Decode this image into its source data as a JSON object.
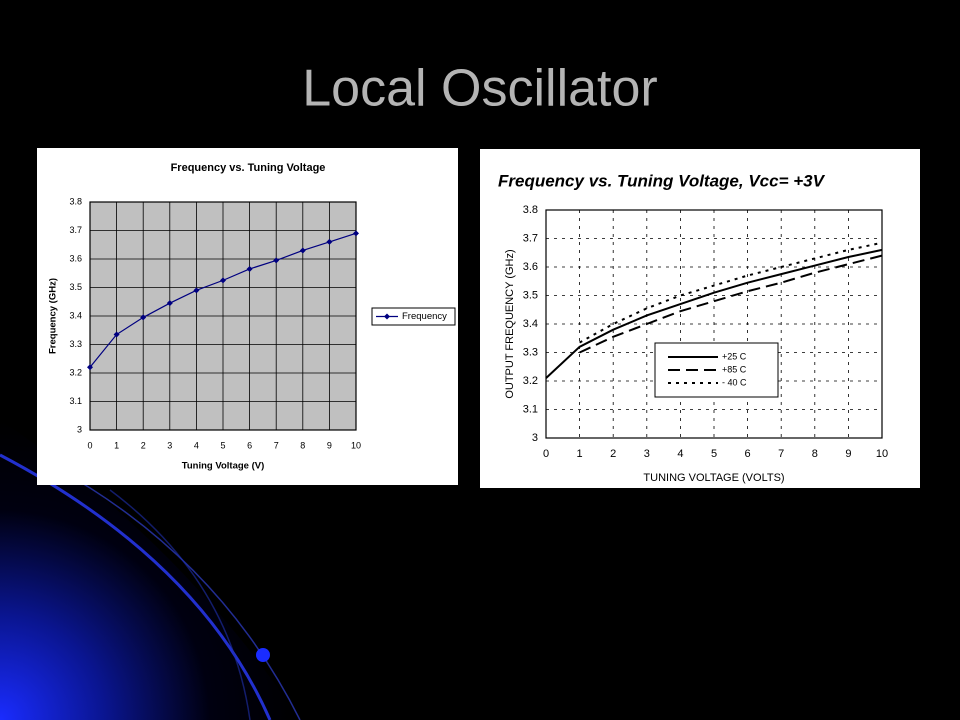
{
  "title": "Local Oscillator",
  "chart_data": [
    {
      "type": "line",
      "title": "Frequency vs. Tuning Voltage",
      "x_label": "Tuning Voltage (V)",
      "y_label": "Frequency (GHz)",
      "x": [
        0,
        1,
        2,
        3,
        4,
        5,
        6,
        7,
        8,
        9,
        10
      ],
      "xlim": [
        0,
        10
      ],
      "xticks": [
        0,
        1,
        2,
        3,
        4,
        5,
        6,
        7,
        8,
        9,
        10
      ],
      "ylim": [
        3,
        3.8
      ],
      "yticks": [
        3,
        3.1,
        3.2,
        3.3,
        3.4,
        3.5,
        3.6,
        3.7,
        3.8
      ],
      "grid": true,
      "grid_style": "solid",
      "legend": "right",
      "markers": true,
      "plot_background": "#c0c0c0",
      "series": [
        {
          "name": "Frequency",
          "color": "#000080",
          "dash": "solid",
          "values": [
            3.22,
            3.335,
            3.395,
            3.445,
            3.49,
            3.525,
            3.565,
            3.595,
            3.63,
            3.66,
            3.69
          ]
        }
      ]
    },
    {
      "type": "line",
      "title": "Frequency vs. Tuning Voltage, Vcc= +3V",
      "x_label": "TUNING VOLTAGE (VOLTS)",
      "y_label": "OUTPUT  FREQUENCY (GHz)",
      "x": [
        0,
        1,
        2,
        3,
        4,
        5,
        6,
        7,
        8,
        9,
        10
      ],
      "xlim": [
        0,
        10
      ],
      "xticks": [
        0,
        1,
        2,
        3,
        4,
        5,
        6,
        7,
        8,
        9,
        10
      ],
      "ylim": [
        3,
        3.8
      ],
      "yticks": [
        3,
        3.1,
        3.2,
        3.3,
        3.4,
        3.5,
        3.6,
        3.7,
        3.8
      ],
      "grid": true,
      "grid_style": "dotted",
      "legend": "inside",
      "markers": false,
      "plot_background": "#ffffff",
      "series": [
        {
          "name": "+25 C",
          "color": "#000000",
          "dash": "solid",
          "values": [
            3.21,
            3.32,
            3.38,
            3.43,
            3.47,
            3.51,
            3.545,
            3.575,
            3.605,
            3.635,
            3.66
          ]
        },
        {
          "name": "+85 C",
          "color": "#000000",
          "dash": "dashed",
          "values": [
            null,
            3.3,
            3.355,
            3.4,
            3.445,
            3.48,
            3.515,
            3.545,
            3.58,
            3.61,
            3.64
          ]
        },
        {
          "name": "- 40 C",
          "color": "#000000",
          "dash": "dotted",
          "values": [
            null,
            3.335,
            3.4,
            3.455,
            3.5,
            3.535,
            3.57,
            3.6,
            3.63,
            3.66,
            3.685
          ]
        }
      ]
    }
  ]
}
